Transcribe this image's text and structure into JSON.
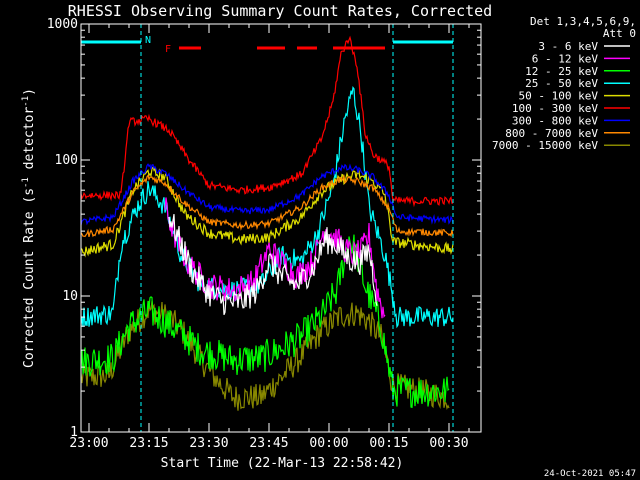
{
  "chart_data": {
    "type": "line",
    "title": "RHESSI Observing Summary Count Rates, Corrected",
    "xlabel": "Start Time (22-Mar-13 22:58:42)",
    "ylabel_main": "Corrected Count Rate (s",
    "ylabel_sup1": "-1",
    "ylabel_mid": " detector",
    "ylabel_sup2": "-1",
    "ylabel_end": ")",
    "footer_date": "24-Oct-2021 05:47",
    "y_scale": "log",
    "ylim": [
      1,
      1000
    ],
    "xlim_minutes": [
      0,
      100
    ],
    "x_ticks": [
      {
        "label": "23:00",
        "m": 2
      },
      {
        "label": "23:15",
        "m": 17
      },
      {
        "label": "23:30",
        "m": 32
      },
      {
        "label": "23:45",
        "m": 47
      },
      {
        "label": "00:00",
        "m": 62
      },
      {
        "label": "00:15",
        "m": 77
      },
      {
        "label": "00:30",
        "m": 92
      }
    ],
    "y_ticks": [
      {
        "label": "1",
        "v": 1
      },
      {
        "label": "10",
        "v": 10
      },
      {
        "label": "100",
        "v": 100
      },
      {
        "label": "1000",
        "v": 1000
      }
    ],
    "legend_header": [
      "Det 1,3,4,5,6,9,",
      "Att 0"
    ],
    "legend_position": "right",
    "series": [
      {
        "name": "3 - 6 keV",
        "color": "#ffffff",
        "key": "s1"
      },
      {
        "name": "6 - 12 keV",
        "color": "#ff00ff",
        "key": "s2"
      },
      {
        "name": "12 - 25 keV",
        "color": "#00ff00",
        "key": "s3"
      },
      {
        "name": "25 - 50 keV",
        "color": "#00ffff",
        "key": "s4"
      },
      {
        "name": "50 - 100 keV",
        "color": "#dddd00",
        "key": "s5"
      },
      {
        "name": "100 - 300 keV",
        "color": "#ff0000",
        "key": "s6"
      },
      {
        "name": "300 - 800 keV",
        "color": "#0000ff",
        "key": "s7"
      },
      {
        "name": "800 - 7000 keV",
        "color": "#ff8800",
        "key": "s8"
      },
      {
        "name": "7000 - 15000 keV",
        "color": "#888800",
        "key": "s9"
      }
    ],
    "night_bars": [
      [
        0,
        15
      ],
      [
        78,
        93
      ]
    ],
    "night_label": "N",
    "flare_label": "F",
    "flare_bars": [
      [
        24.5,
        30
      ],
      [
        44,
        51
      ],
      [
        54,
        59
      ],
      [
        63,
        76
      ]
    ],
    "vlines_cyan": [
      15,
      78,
      93
    ],
    "series_points": {
      "s6": [
        [
          0,
          55
        ],
        [
          10,
          55
        ],
        [
          12,
          190
        ],
        [
          17,
          200
        ],
        [
          22,
          165
        ],
        [
          27,
          100
        ],
        [
          32,
          65
        ],
        [
          40,
          60
        ],
        [
          47,
          63
        ],
        [
          55,
          78
        ],
        [
          60,
          140
        ],
        [
          63,
          270
        ],
        [
          65,
          600
        ],
        [
          67,
          800
        ],
        [
          69,
          500
        ],
        [
          71,
          160
        ],
        [
          73,
          110
        ],
        [
          75,
          100
        ],
        [
          77,
          90
        ],
        [
          78,
          50
        ],
        [
          93,
          50
        ]
      ],
      "s7": [
        [
          0,
          35
        ],
        [
          8,
          38
        ],
        [
          13,
          70
        ],
        [
          17,
          90
        ],
        [
          21,
          80
        ],
        [
          26,
          60
        ],
        [
          32,
          45
        ],
        [
          40,
          42
        ],
        [
          47,
          43
        ],
        [
          55,
          55
        ],
        [
          60,
          75
        ],
        [
          65,
          88
        ],
        [
          69,
          85
        ],
        [
          73,
          75
        ],
        [
          77,
          55
        ],
        [
          79,
          38
        ],
        [
          93,
          36
        ]
      ],
      "s8": [
        [
          0,
          28
        ],
        [
          8,
          31
        ],
        [
          13,
          58
        ],
        [
          17,
          75
        ],
        [
          21,
          68
        ],
        [
          26,
          48
        ],
        [
          32,
          35
        ],
        [
          40,
          33
        ],
        [
          47,
          34
        ],
        [
          55,
          45
        ],
        [
          60,
          62
        ],
        [
          65,
          72
        ],
        [
          69,
          70
        ],
        [
          73,
          62
        ],
        [
          77,
          44
        ],
        [
          79,
          30
        ],
        [
          93,
          29
        ]
      ],
      "s5": [
        [
          0,
          21
        ],
        [
          8,
          24
        ],
        [
          13,
          60
        ],
        [
          17,
          83
        ],
        [
          21,
          75
        ],
        [
          26,
          40
        ],
        [
          32,
          29
        ],
        [
          40,
          26
        ],
        [
          47,
          27
        ],
        [
          55,
          38
        ],
        [
          60,
          58
        ],
        [
          65,
          72
        ],
        [
          69,
          78
        ],
        [
          73,
          70
        ],
        [
          76,
          55
        ],
        [
          78,
          25
        ],
        [
          93,
          22
        ]
      ],
      "s4": [
        [
          0,
          7
        ],
        [
          8,
          7.5
        ],
        [
          10,
          24
        ],
        [
          14,
          45
        ],
        [
          17,
          62
        ],
        [
          21,
          45
        ],
        [
          25,
          20
        ],
        [
          30,
          12
        ],
        [
          38,
          11
        ],
        [
          45,
          12
        ],
        [
          50,
          20
        ],
        [
          55,
          18
        ],
        [
          59,
          28
        ],
        [
          63,
          65
        ],
        [
          66,
          200
        ],
        [
          68,
          330
        ],
        [
          70,
          160
        ],
        [
          72,
          45
        ],
        [
          76,
          20
        ],
        [
          79,
          7
        ],
        [
          93,
          7
        ]
      ],
      "s1": [
        [
          22,
          40
        ],
        [
          25,
          24
        ],
        [
          28,
          15
        ],
        [
          32,
          10.5
        ],
        [
          36,
          9
        ],
        [
          40,
          9
        ],
        [
          44,
          11
        ],
        [
          47,
          18
        ],
        [
          50,
          14
        ],
        [
          54,
          12
        ],
        [
          58,
          16
        ],
        [
          61,
          26
        ],
        [
          64,
          24
        ],
        [
          66,
          20
        ],
        [
          68,
          18
        ],
        [
          70,
          18
        ],
        [
          72,
          22
        ],
        [
          74,
          10
        ]
      ],
      "s2": [
        [
          21,
          45
        ],
        [
          24,
          25
        ],
        [
          27,
          17
        ],
        [
          32,
          12
        ],
        [
          38,
          11
        ],
        [
          43,
          12.5
        ],
        [
          47,
          22
        ],
        [
          50,
          18
        ],
        [
          54,
          14
        ],
        [
          58,
          18
        ],
        [
          61,
          32
        ],
        [
          64,
          26
        ],
        [
          66,
          22
        ],
        [
          68,
          20
        ],
        [
          70,
          21
        ],
        [
          72,
          28
        ],
        [
          74,
          11
        ],
        [
          76,
          7
        ]
      ],
      "s3": [
        [
          0,
          3.3
        ],
        [
          8,
          3.5
        ],
        [
          12,
          6
        ],
        [
          17,
          7.8
        ],
        [
          21,
          6.5
        ],
        [
          25,
          5.3
        ],
        [
          30,
          4
        ],
        [
          38,
          3.4
        ],
        [
          45,
          3.5
        ],
        [
          50,
          4.1
        ],
        [
          55,
          5
        ],
        [
          60,
          7
        ],
        [
          64,
          11
        ],
        [
          67,
          27
        ],
        [
          69,
          20
        ],
        [
          71,
          12
        ],
        [
          75,
          6
        ],
        [
          78,
          2
        ],
        [
          92,
          2
        ]
      ],
      "s9": [
        [
          0,
          2.5
        ],
        [
          7,
          2.6
        ],
        [
          12,
          5.5
        ],
        [
          17,
          8
        ],
        [
          22,
          7
        ],
        [
          26,
          5.2
        ],
        [
          30,
          3.4
        ],
        [
          34,
          2.4
        ],
        [
          38,
          1.8
        ],
        [
          45,
          1.8
        ],
        [
          50,
          2.5
        ],
        [
          55,
          3.6
        ],
        [
          60,
          5.5
        ],
        [
          65,
          7.2
        ],
        [
          69,
          7.5
        ],
        [
          72,
          6.5
        ],
        [
          75,
          5
        ],
        [
          78,
          2.2
        ],
        [
          92,
          1.8
        ]
      ]
    }
  }
}
